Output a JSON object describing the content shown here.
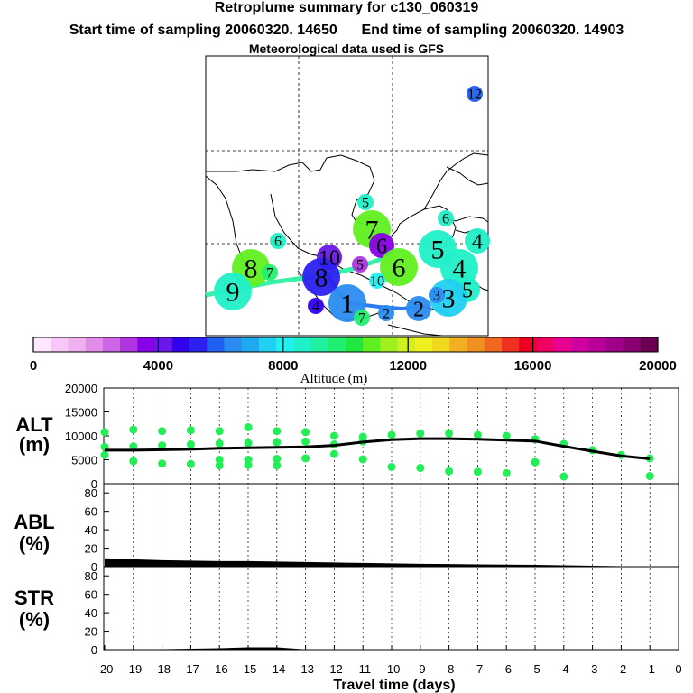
{
  "header": {
    "title": "Retroplume summary for c130_060319",
    "start_label": "Start time of sampling 20060320. 14650",
    "end_label": "End time of sampling 20060320. 14903",
    "met_label": "Meteorological data used is GFS"
  },
  "colors": {
    "trajectory": "#2b7cf0",
    "trajectory_tail": "#38f0a8",
    "line": "#000000",
    "alt_points": "#22ee55",
    "map_line": "#000000"
  },
  "colorbar": {
    "title": "Altitude (m)",
    "ticks": [
      "0",
      "4000",
      "8000",
      "12000",
      "16000",
      "20000"
    ],
    "min": 0,
    "max": 20000,
    "colors": [
      "#ffe8ff",
      "#f7c8f7",
      "#eeb0ee",
      "#e08ce8",
      "#cc66e6",
      "#b035e0",
      "#8800e8",
      "#6a18e8",
      "#3300ee",
      "#2b20f0",
      "#2060f0",
      "#2b8cf0",
      "#20a8f0",
      "#20d0f0",
      "#20f0f0",
      "#20f0c8",
      "#20f0a0",
      "#20f070",
      "#20e840",
      "#60f020",
      "#a0f020",
      "#d0f020",
      "#f0f020",
      "#f0d820",
      "#f0b020",
      "#f09020",
      "#f06820",
      "#f03020",
      "#f00020",
      "#f00060",
      "#e80090",
      "#d000a0",
      "#b80098",
      "#a00088",
      "#880070",
      "#6a0050"
    ]
  },
  "map_labels": [
    {
      "text": "12",
      "color": "#2060f0",
      "size": "small"
    },
    {
      "text": "5",
      "color": "#20f0c8",
      "size": "small"
    },
    {
      "text": "6",
      "color": "#20f0c8",
      "size": "small"
    },
    {
      "text": "7",
      "color": "#60f020",
      "size": "big"
    },
    {
      "text": "6",
      "color": "#20f0c8",
      "size": "small"
    },
    {
      "text": "6",
      "color": "#8800e8",
      "size": "medium"
    },
    {
      "text": "5",
      "color": "#20f0c8",
      "size": "big"
    },
    {
      "text": "4",
      "color": "#20f0c8",
      "size": "medium"
    },
    {
      "text": "4",
      "color": "#20f0c8",
      "size": "big"
    },
    {
      "text": "8",
      "color": "#60f020",
      "size": "big"
    },
    {
      "text": "7",
      "color": "#20f070",
      "size": "small"
    },
    {
      "text": "9",
      "color": "#20f0c8",
      "size": "big"
    },
    {
      "text": "10",
      "color": "#6a18e8",
      "size": "medium"
    },
    {
      "text": "8",
      "color": "#2b20f0",
      "size": "big"
    },
    {
      "text": "5",
      "color": "#b035e0",
      "size": "small"
    },
    {
      "text": "6",
      "color": "#60f020",
      "size": "big"
    },
    {
      "text": "10",
      "color": "#20f0f0",
      "size": "small"
    },
    {
      "text": "5",
      "color": "#20f0c8",
      "size": "medium"
    },
    {
      "text": "3",
      "color": "#20d0f0",
      "size": "big"
    },
    {
      "text": "3",
      "color": "#2b8cf0",
      "size": "small"
    },
    {
      "text": "2",
      "color": "#2b8cf0",
      "size": "medium"
    },
    {
      "text": "2",
      "color": "#2b8cf0",
      "size": "small"
    },
    {
      "text": "4",
      "color": "#3300ee",
      "size": "small"
    },
    {
      "text": "1",
      "color": "#2b8cf0",
      "size": "big"
    },
    {
      "text": "7",
      "color": "#20f070",
      "size": "small"
    }
  ],
  "chart_data": [
    {
      "type": "scatter",
      "title": "ALT (m)",
      "ylabel": "ALT\n(m)",
      "ylim": [
        0,
        20000
      ],
      "yticks": [
        0,
        5000,
        10000,
        15000,
        20000
      ],
      "xlim": [
        -20,
        0
      ],
      "line": {
        "x": [
          -20,
          -19,
          -18,
          -17,
          -16,
          -15,
          -14,
          -13,
          -12,
          -11,
          -10,
          -9,
          -8,
          -7,
          -6,
          -5,
          -4,
          -3,
          -2,
          -1
        ],
        "y": [
          7000,
          7000,
          7100,
          7200,
          7400,
          7500,
          7600,
          7700,
          8000,
          8700,
          9200,
          9400,
          9400,
          9300,
          9100,
          8900,
          7800,
          6800,
          5800,
          5200
        ]
      },
      "points": [
        {
          "x": -20,
          "y": 7700
        },
        {
          "x": -20,
          "y": 6000
        },
        {
          "x": -20,
          "y": 10800
        },
        {
          "x": -19,
          "y": 11300
        },
        {
          "x": -19,
          "y": 7800
        },
        {
          "x": -19,
          "y": 4700
        },
        {
          "x": -18,
          "y": 11000
        },
        {
          "x": -18,
          "y": 8000
        },
        {
          "x": -18,
          "y": 4200
        },
        {
          "x": -17,
          "y": 11200
        },
        {
          "x": -17,
          "y": 8200
        },
        {
          "x": -17,
          "y": 4100
        },
        {
          "x": -16,
          "y": 11000
        },
        {
          "x": -16,
          "y": 8400
        },
        {
          "x": -16,
          "y": 5000
        },
        {
          "x": -16,
          "y": 3800
        },
        {
          "x": -15,
          "y": 11800
        },
        {
          "x": -15,
          "y": 8500
        },
        {
          "x": -15,
          "y": 5000
        },
        {
          "x": -15,
          "y": 3900
        },
        {
          "x": -14,
          "y": 11000
        },
        {
          "x": -14,
          "y": 8700
        },
        {
          "x": -14,
          "y": 5200
        },
        {
          "x": -14,
          "y": 3800
        },
        {
          "x": -13,
          "y": 10800
        },
        {
          "x": -13,
          "y": 8800
        },
        {
          "x": -13,
          "y": 5300
        },
        {
          "x": -12,
          "y": 10000
        },
        {
          "x": -12,
          "y": 8200
        },
        {
          "x": -12,
          "y": 6200
        },
        {
          "x": -11,
          "y": 9800
        },
        {
          "x": -11,
          "y": 8800
        },
        {
          "x": -11,
          "y": 5100
        },
        {
          "x": -10,
          "y": 10200
        },
        {
          "x": -10,
          "y": 3500
        },
        {
          "x": -9,
          "y": 10500
        },
        {
          "x": -9,
          "y": 3300
        },
        {
          "x": -8,
          "y": 10500
        },
        {
          "x": -8,
          "y": 2600
        },
        {
          "x": -7,
          "y": 10200
        },
        {
          "x": -7,
          "y": 2500
        },
        {
          "x": -6,
          "y": 10000
        },
        {
          "x": -6,
          "y": 2200
        },
        {
          "x": -5,
          "y": 9300
        },
        {
          "x": -5,
          "y": 4500
        },
        {
          "x": -4,
          "y": 8300
        },
        {
          "x": -4,
          "y": 1500
        },
        {
          "x": -3,
          "y": 7000
        },
        {
          "x": -2,
          "y": 6000
        },
        {
          "x": -1,
          "y": 5300
        },
        {
          "x": -1,
          "y": 1600
        }
      ]
    },
    {
      "type": "line",
      "title": "ABL (%)",
      "ylabel": "ABL\n(%)",
      "ylim": [
        0,
        90
      ],
      "yticks": [
        0,
        20,
        40,
        60,
        80
      ],
      "xlim": [
        -20,
        0
      ],
      "x": [
        -20,
        -19,
        -18,
        -17,
        -16,
        -15,
        -14,
        -13,
        -12,
        -11,
        -10,
        -9,
        -8,
        -7,
        -6,
        -5,
        -4,
        -3,
        -2,
        -1
      ],
      "y": [
        9,
        8,
        7,
        6.5,
        6,
        6,
        5.5,
        5,
        4.5,
        4,
        3.5,
        3,
        2.8,
        2.5,
        2.2,
        2,
        1.5,
        1,
        0.5,
        0.2
      ]
    },
    {
      "type": "line",
      "title": "STR (%)",
      "ylabel": "STR\n(%)",
      "ylim": [
        0,
        90
      ],
      "yticks": [
        0,
        20,
        40,
        60,
        80
      ],
      "xlim": [
        -20,
        0
      ],
      "x": [
        -20,
        -19,
        -18,
        -17,
        -16,
        -15,
        -14,
        -13,
        -12,
        -11,
        -10,
        -9,
        -8,
        -7,
        -6,
        -5,
        -4,
        -3,
        -2,
        -1
      ],
      "y": [
        0.2,
        0.3,
        0.5,
        1,
        1.5,
        2.5,
        2.5,
        0.3,
        0,
        0,
        0,
        0,
        0,
        0,
        0,
        0,
        0,
        0,
        0,
        0
      ]
    }
  ],
  "xaxis": {
    "label": "Travel time (days)",
    "ticks": [
      "-20",
      "-19",
      "-18",
      "-17",
      "-16",
      "-15",
      "-14",
      "-13",
      "-12",
      "-11",
      "-10",
      "-9",
      "-8",
      "-7",
      "-6",
      "-5",
      "-4",
      "-3",
      "-2",
      "-1",
      "0"
    ]
  }
}
